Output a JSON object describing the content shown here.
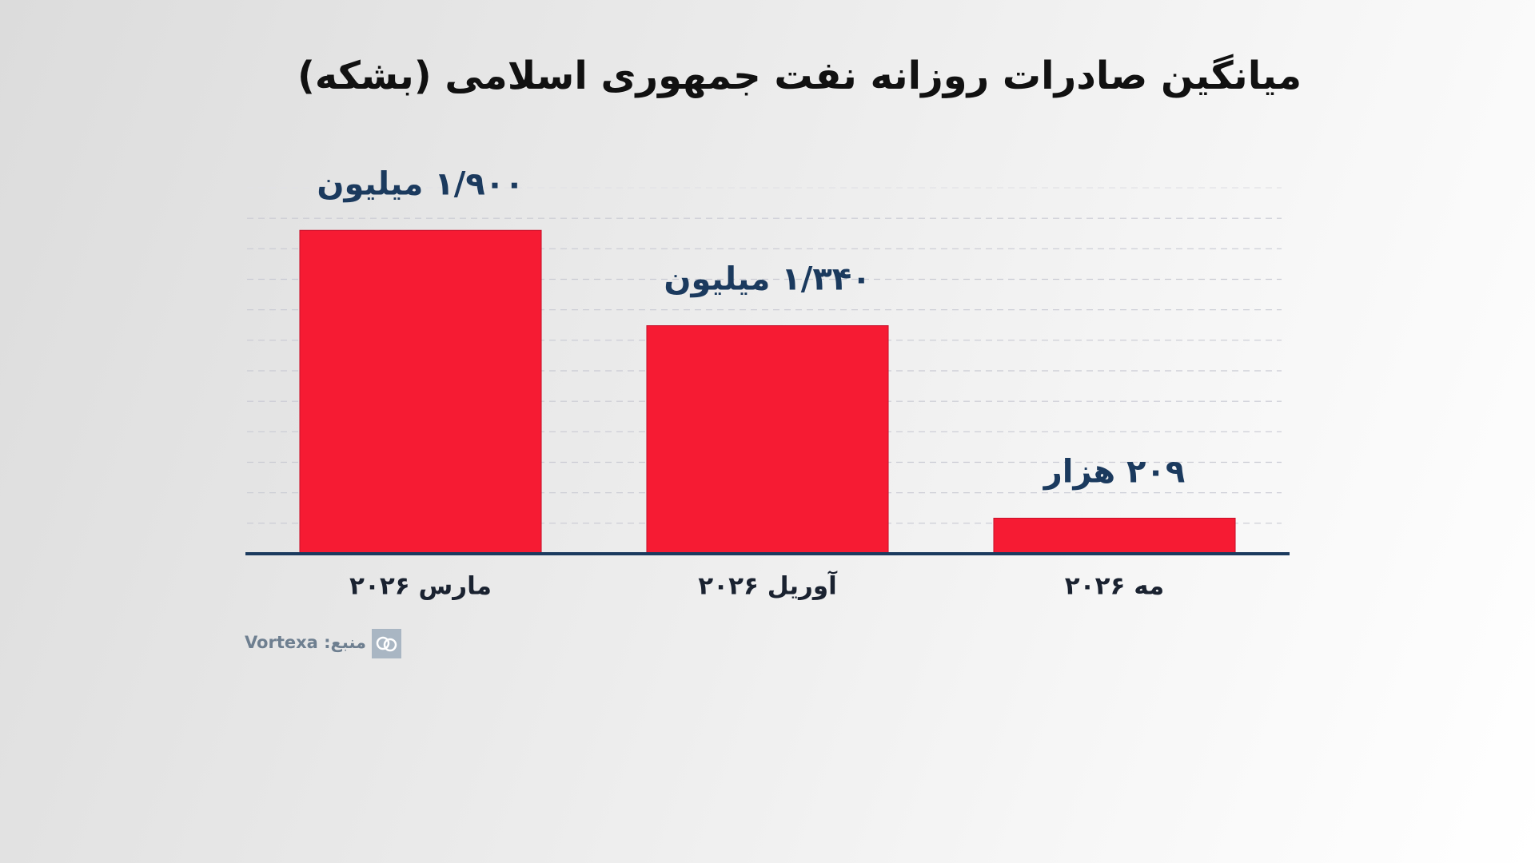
{
  "chart_data": {
    "type": "bar",
    "title": "میانگین صادرات روزانه نفت جمهوری اسلامی (بشکه)",
    "categories": [
      "مارس ۲۰۲۶",
      "آوریل ۲۰۲۶",
      "مه ۲۰۲۶"
    ],
    "values": [
      1900000,
      1340000,
      209000
    ],
    "value_labels": [
      "۱/۹۰۰ میلیون",
      "۱/۳۴۰ میلیون",
      "۲۰۹ هزار"
    ],
    "color": "#f61b33",
    "ylim": [
      0,
      2150000
    ],
    "source": "منبع: Vortexa"
  }
}
